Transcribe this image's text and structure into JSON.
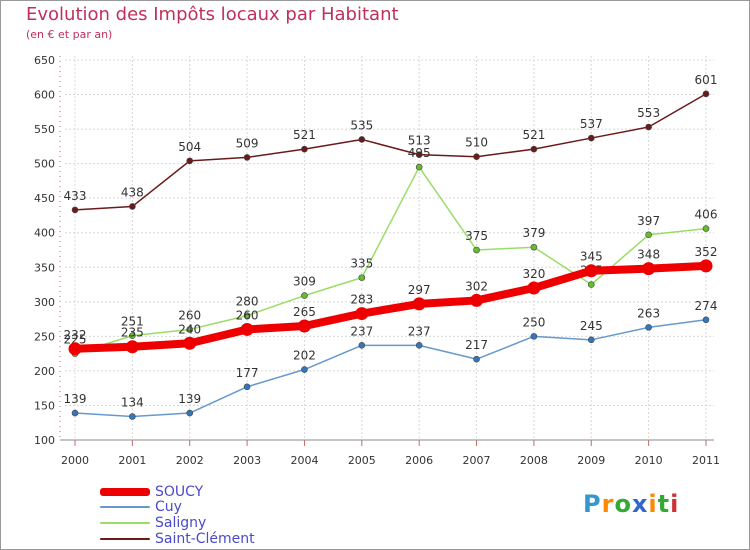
{
  "chart_data": {
    "type": "line",
    "title": "Evolution des Impôts locaux par Habitant",
    "subtitle": "(en € et par an)",
    "xlabel": "",
    "ylabel": "",
    "ylim": [
      100,
      650
    ],
    "y_ticks": [
      100,
      150,
      200,
      250,
      300,
      350,
      400,
      450,
      500,
      550,
      600,
      650
    ],
    "grid": true,
    "legend_position": "bottom-left",
    "categories": [
      "2000",
      "2001",
      "2002",
      "2003",
      "2004",
      "2005",
      "2006",
      "2007",
      "2008",
      "2009",
      "2010",
      "2011"
    ],
    "series": [
      {
        "name": "Saint-Clément",
        "color": "#6b1a1a",
        "values": [
          433,
          438,
          504,
          509,
          521,
          535,
          513,
          510,
          521,
          537,
          553,
          601
        ]
      },
      {
        "name": "Saligny",
        "color": "#99dd66",
        "marker": "#66bb33",
        "values": [
          225,
          251,
          260,
          280,
          309,
          335,
          495,
          375,
          379,
          325,
          397,
          406
        ]
      },
      {
        "name": "Cuy",
        "color": "#6699cc",
        "marker": "#3377bb",
        "values": [
          139,
          134,
          139,
          177,
          202,
          237,
          237,
          217,
          250,
          245,
          263,
          274
        ]
      },
      {
        "name": "SOUCY",
        "color": "#ee0000",
        "values": [
          232,
          235,
          240,
          260,
          265,
          283,
          297,
          302,
          320,
          345,
          348,
          352
        ]
      }
    ]
  },
  "legend_order": [
    "SOUCY",
    "Cuy",
    "Saligny",
    "Saint-Clément"
  ],
  "logo": {
    "letters": [
      "P",
      "r",
      "o",
      "x",
      "i",
      "t",
      "i"
    ],
    "colors": [
      "#3399cc",
      "#ff8800",
      "#33aa33",
      "#3366cc",
      "#ff8800",
      "#33aa33",
      "#cc3333"
    ]
  }
}
